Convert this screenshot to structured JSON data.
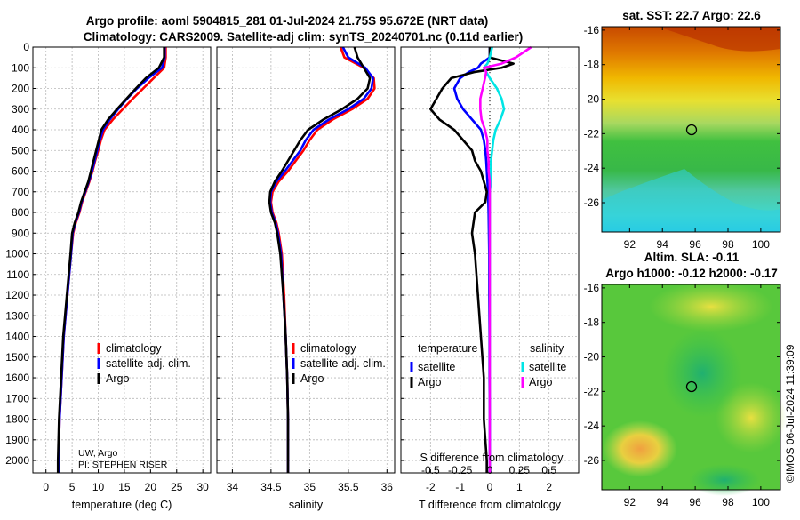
{
  "header": {
    "title_line1": "Argo profile: aoml 5904815_281 01-Jul-2024 21.75S 95.672E (NRT data)",
    "title_line2": "Climatology: CARS2009. Satellite-adj clim: synTS_20240701.nc (0.11d earlier)"
  },
  "credits": {
    "source": "UW, Argo",
    "pi": "PI: STEPHEN RISER",
    "stamp": "©IMOS 06-Jul-2024 11:39:09"
  },
  "colors": {
    "climatology": "#ff0000",
    "satellite": "#0000ff",
    "argo": "#000000",
    "sal_satellite": "#00e5e5",
    "sal_argo": "#ff00ff"
  },
  "chart_data": [
    {
      "type": "line",
      "name": "temperature-profile",
      "xlabel": "temperature (deg C)",
      "ylabel": "",
      "xlim": [
        -2.5,
        31.5
      ],
      "ylim": [
        2060,
        0
      ],
      "xticks": [
        "0",
        "5",
        "10",
        "15",
        "20",
        "25",
        "30"
      ],
      "yticks": [
        "0",
        "100",
        "200",
        "300",
        "400",
        "500",
        "600",
        "700",
        "800",
        "900",
        "1000",
        "1100",
        "1200",
        "1300",
        "1400",
        "1500",
        "1600",
        "1700",
        "1800",
        "1900",
        "2000"
      ],
      "legend": [
        "climatology",
        "satellite-adj. clim.",
        "Argo"
      ],
      "depth": [
        0,
        50,
        100,
        150,
        200,
        250,
        300,
        350,
        400,
        450,
        500,
        550,
        600,
        650,
        700,
        750,
        800,
        850,
        900,
        1000,
        1200,
        1400,
        1600,
        1800,
        2000,
        2060
      ],
      "series": [
        {
          "name": "climatology",
          "values": [
            22.9,
            22.9,
            22.6,
            20.6,
            18.6,
            16.6,
            14.7,
            12.8,
            11.2,
            10.5,
            10.0,
            9.4,
            8.9,
            8.3,
            7.6,
            6.9,
            6.4,
            5.7,
            5.2,
            4.8,
            4.1,
            3.4,
            3.0,
            2.6,
            2.4,
            2.4
          ]
        },
        {
          "name": "satellite-adj. clim.",
          "values": [
            22.7,
            22.7,
            22.2,
            19.6,
            17.4,
            15.5,
            13.8,
            12.2,
            10.9,
            10.3,
            9.8,
            9.3,
            8.8,
            8.2,
            7.5,
            6.8,
            6.3,
            5.6,
            5.1,
            4.8,
            4.1,
            3.4,
            3.0,
            2.6,
            2.4,
            2.4
          ]
        },
        {
          "name": "Argo",
          "values": [
            22.6,
            22.6,
            21.6,
            19.1,
            17.2,
            15.4,
            13.6,
            11.9,
            10.6,
            10.1,
            9.6,
            9.1,
            8.6,
            8.1,
            7.4,
            6.7,
            6.2,
            5.5,
            5.0,
            4.7,
            4.0,
            3.3,
            2.9,
            2.5,
            2.3,
            2.3
          ]
        }
      ]
    },
    {
      "type": "line",
      "name": "salinity-profile",
      "xlabel": "salinity",
      "xlim": [
        33.8,
        36.1
      ],
      "ylim": [
        2060,
        0
      ],
      "xticks": [
        "34",
        "34.5",
        "35",
        "35.5",
        "36"
      ],
      "legend": [
        "climatology",
        "satellite-adj. clim.",
        "Argo"
      ],
      "depth": [
        0,
        50,
        100,
        150,
        200,
        250,
        300,
        350,
        400,
        450,
        500,
        550,
        600,
        650,
        700,
        750,
        800,
        850,
        900,
        1000,
        1200,
        1400,
        1600,
        1800,
        2000,
        2060
      ],
      "series": [
        {
          "name": "climatology",
          "values": [
            35.4,
            35.45,
            35.7,
            35.83,
            35.84,
            35.75,
            35.55,
            35.3,
            35.1,
            35.0,
            34.92,
            34.82,
            34.72,
            34.6,
            34.52,
            34.5,
            34.52,
            34.57,
            34.6,
            34.64,
            34.67,
            34.69,
            34.71,
            34.72,
            34.72,
            34.72
          ]
        },
        {
          "name": "satellite-adj. clim.",
          "values": [
            35.43,
            35.5,
            35.72,
            35.82,
            35.8,
            35.7,
            35.5,
            35.25,
            35.05,
            34.95,
            34.88,
            34.78,
            34.68,
            34.57,
            34.5,
            34.49,
            34.51,
            34.56,
            34.59,
            34.63,
            34.66,
            34.69,
            34.71,
            34.72,
            34.72,
            34.72
          ]
        },
        {
          "name": "Argo",
          "values": [
            35.58,
            35.62,
            35.7,
            35.78,
            35.75,
            35.62,
            35.42,
            35.18,
            34.98,
            34.88,
            34.8,
            34.72,
            34.64,
            34.55,
            34.49,
            34.48,
            34.5,
            34.55,
            34.58,
            34.62,
            34.66,
            34.69,
            34.71,
            34.72,
            34.72,
            34.72
          ]
        }
      ]
    },
    {
      "type": "line",
      "name": "difference-profile",
      "xlabel": "T difference from climatology",
      "xlabel_top": "S difference from climatology",
      "xlim": [
        -3,
        3
      ],
      "ylim": [
        2060,
        0
      ],
      "xticks": [
        "-2",
        "-1",
        "0",
        "1",
        "2"
      ],
      "xticks_top": [
        "-0.5",
        "-0.25",
        "0",
        "0.25",
        "0.5"
      ],
      "legend_temperature_title": "temperature",
      "legend_salinity_title": "salinity",
      "legend": [
        "satellite",
        "Argo",
        "satellite",
        "Argo"
      ],
      "depth": [
        0,
        50,
        80,
        100,
        120,
        150,
        200,
        250,
        300,
        350,
        400,
        450,
        500,
        550,
        600,
        650,
        700,
        750,
        800,
        900,
        1000,
        1200,
        1400,
        1600,
        1800,
        2000,
        2060
      ],
      "series": [
        {
          "name": "temperature satellite",
          "values": [
            0.0,
            0.0,
            -0.3,
            -0.4,
            -0.7,
            -1.0,
            -1.2,
            -1.1,
            -0.9,
            -0.6,
            -0.3,
            -0.2,
            -0.15,
            -0.12,
            -0.1,
            -0.08,
            -0.06,
            -0.05,
            -0.04,
            -0.03,
            -0.02,
            -0.02,
            -0.01,
            -0.01,
            0.0,
            0.0,
            0.0
          ]
        },
        {
          "name": "temperature Argo",
          "values": [
            0.0,
            0.0,
            0.8,
            0.4,
            -0.5,
            -1.3,
            -1.6,
            -1.8,
            -2.0,
            -1.7,
            -1.2,
            -0.9,
            -0.6,
            -0.5,
            -0.3,
            -0.2,
            -0.1,
            -0.15,
            -0.5,
            -0.6,
            -0.5,
            -0.4,
            -0.3,
            -0.2,
            -0.2,
            -0.1,
            -0.1
          ]
        },
        {
          "name": "salinity satellite",
          "values": [
            0.02,
            0.0,
            -0.02,
            -0.05,
            -0.03,
            0.0,
            0.06,
            0.1,
            0.12,
            0.09,
            0.05,
            0.03,
            0.02,
            0.01,
            0.01,
            0.01,
            0.0,
            0.0,
            0.0,
            0.0,
            0.0,
            0.0,
            0.0,
            0.0,
            0.0,
            0.0,
            0.0
          ]
        },
        {
          "name": "salinity Argo",
          "values": [
            0.35,
            0.22,
            0.1,
            -0.05,
            -0.03,
            -0.04,
            -0.06,
            -0.08,
            -0.08,
            -0.07,
            -0.04,
            -0.02,
            -0.02,
            -0.01,
            -0.01,
            0.0,
            0.0,
            0.0,
            0.0,
            0.0,
            0.0,
            0.0,
            0.0,
            0.0,
            0.0,
            0.0,
            0.0
          ]
        }
      ]
    },
    {
      "type": "heatmap",
      "name": "sst-map",
      "title": "sat. SST: 22.7 Argo: 22.6",
      "xticks": [
        "92",
        "94",
        "96",
        "98",
        "100"
      ],
      "yticks": [
        "-16",
        "-18",
        "-20",
        "-22",
        "-24",
        "-26"
      ],
      "xlim": [
        90.3,
        101.2
      ],
      "ylim": [
        -27.7,
        -15.8
      ],
      "marker": {
        "lon": 95.67,
        "lat": -21.75
      }
    },
    {
      "type": "heatmap",
      "name": "sla-map",
      "title": "Altim. SLA: -0.11",
      "subtitle": "Argo h1000: -0.12 h2000: -0.17",
      "xticks": [
        "92",
        "94",
        "96",
        "98",
        "100"
      ],
      "yticks": [
        "-16",
        "-18",
        "-20",
        "-22",
        "-24",
        "-26"
      ],
      "xlim": [
        90.3,
        101.2
      ],
      "ylim": [
        -27.7,
        -15.8
      ],
      "marker": {
        "lon": 95.67,
        "lat": -21.75
      }
    }
  ]
}
